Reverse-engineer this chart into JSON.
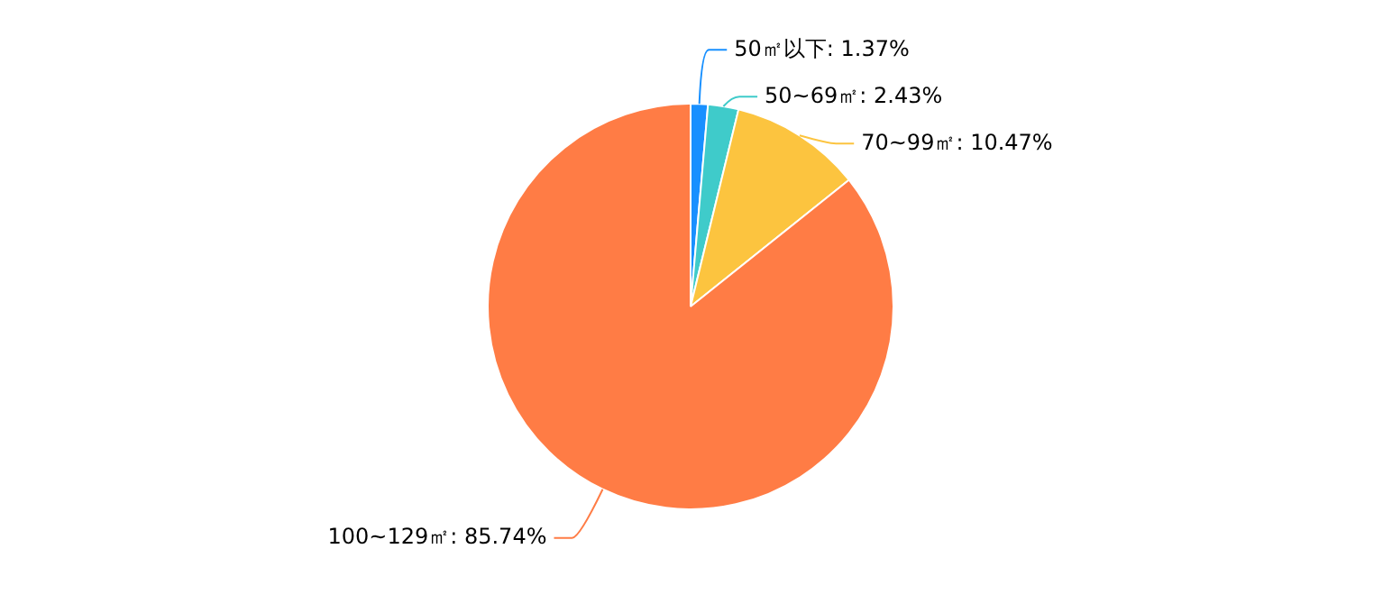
{
  "chart_data": {
    "type": "pie",
    "categories": [
      "50㎡以下",
      "50~69㎡",
      "70~99㎡",
      "100~129㎡"
    ],
    "values": [
      1.37,
      2.43,
      10.47,
      85.74
    ],
    "value_labels": [
      "1.37%",
      "2.43%",
      "10.47%",
      "85.74%"
    ],
    "colors": [
      "#1890ff",
      "#3fcbca",
      "#fcc43f",
      "#ff7c45"
    ],
    "legend": false
  }
}
